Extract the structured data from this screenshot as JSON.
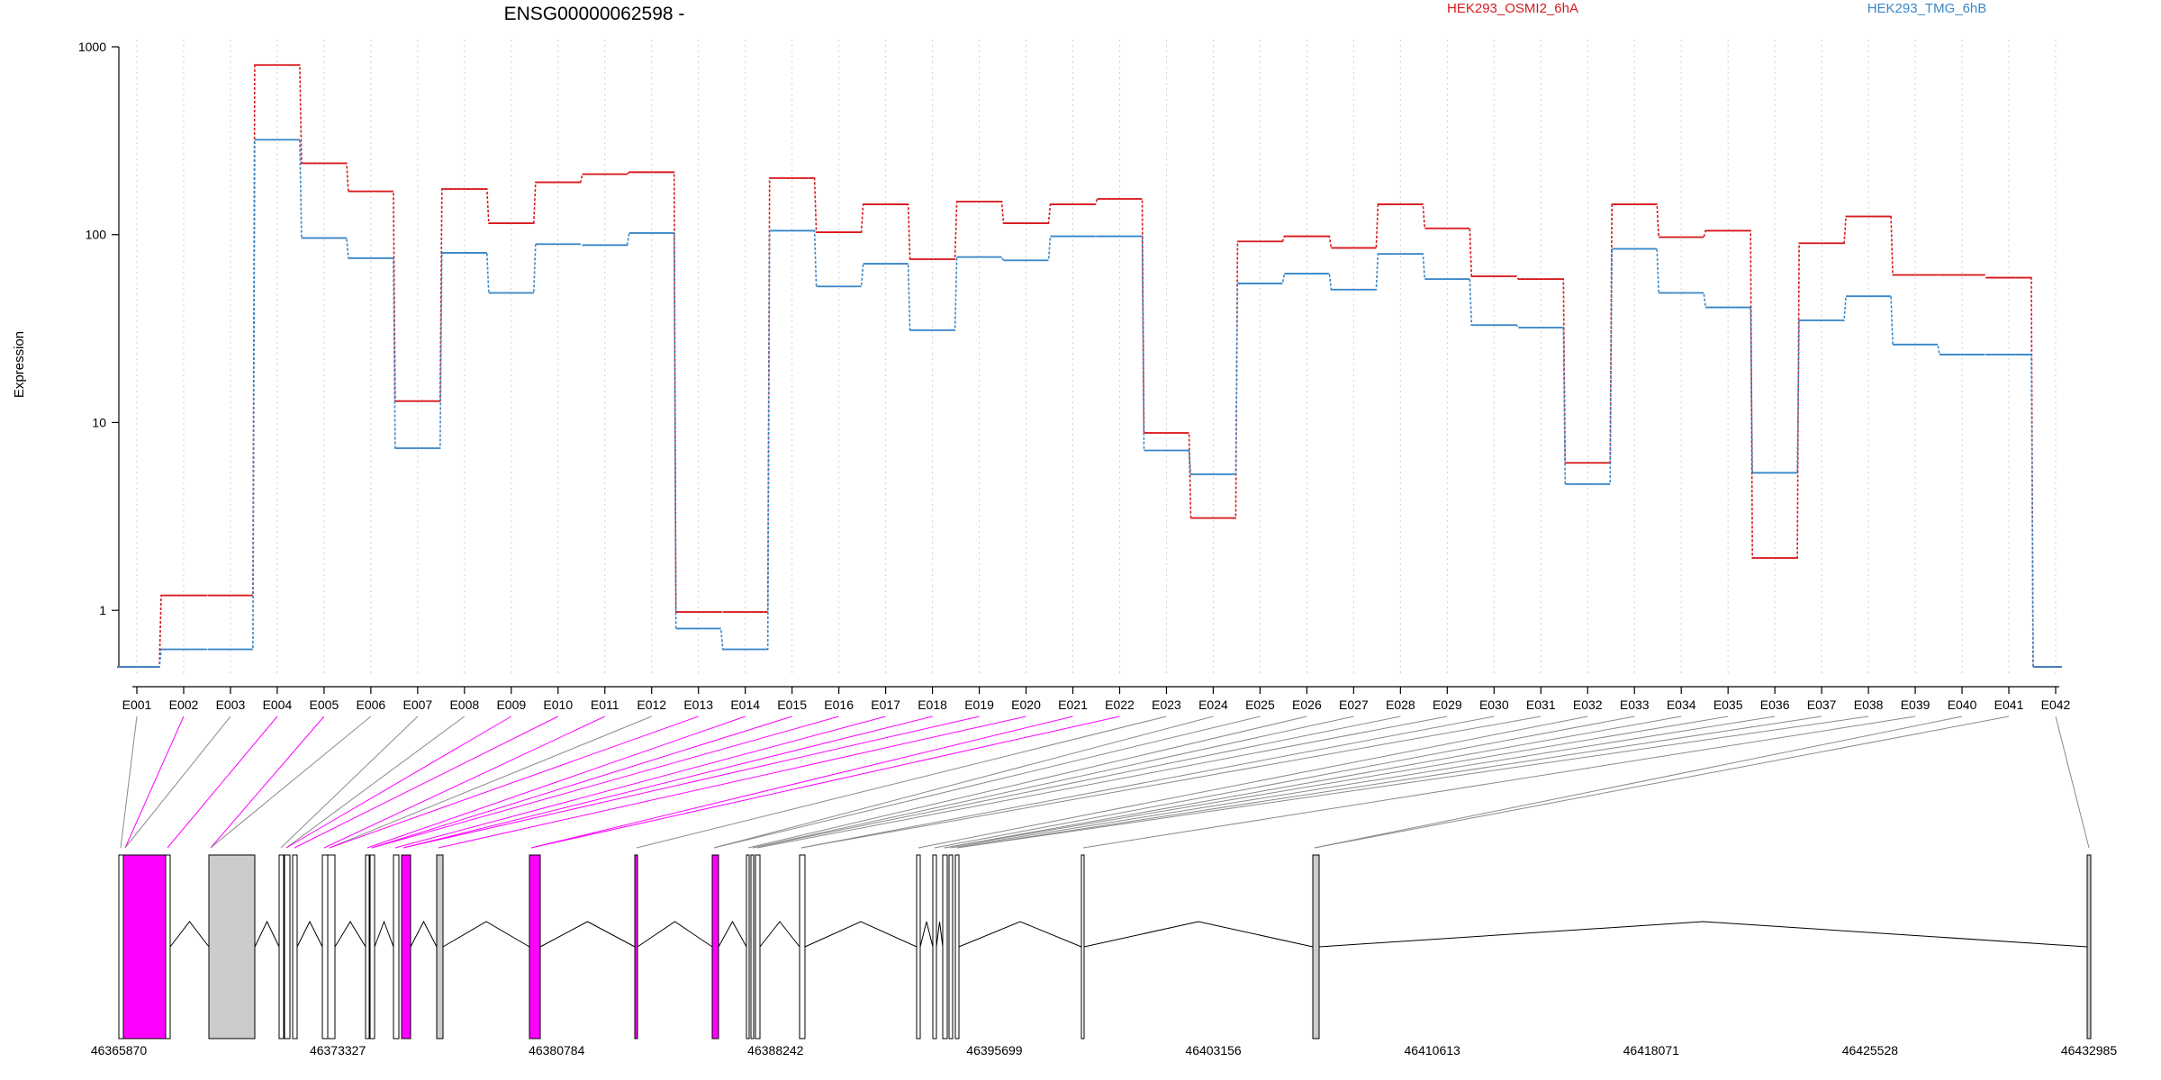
{
  "chart_data": {
    "type": "line",
    "title": "ENSG00000062598 -",
    "ylabel": "Expression",
    "xlabel": "",
    "y_scale": "log",
    "ylim": [
      0.5,
      1000
    ],
    "y_ticks": [
      {
        "value": 1,
        "label": "1"
      },
      {
        "value": 10,
        "label": "10"
      },
      {
        "value": 100,
        "label": "100"
      },
      {
        "value": 1000,
        "label": "1000"
      }
    ],
    "grid": "vertical dotted lines at each exon",
    "legend_placement": "top, above plot",
    "categories": [
      "E001",
      "E002",
      "E003",
      "E004",
      "E005",
      "E006",
      "E007",
      "E008",
      "E009",
      "E010",
      "E011",
      "E012",
      "E013",
      "E014",
      "E015",
      "E016",
      "E017",
      "E018",
      "E019",
      "E020",
      "E021",
      "E022",
      "E023",
      "E024",
      "E025",
      "E026",
      "E027",
      "E028",
      "E029",
      "E030",
      "E031",
      "E032",
      "E033",
      "E034",
      "E035",
      "E036",
      "E037",
      "E038",
      "E039",
      "E040",
      "E041",
      "E042"
    ],
    "series": [
      {
        "name": "HEK293_OSMI2_6hA",
        "color": "#d7191c",
        "values": [
          0.5,
          1.2,
          1.2,
          800,
          240,
          170,
          13,
          175,
          115,
          190,
          210,
          215,
          0.98,
          0.98,
          200,
          103,
          145,
          74,
          150,
          115,
          145,
          155,
          8.8,
          3.1,
          92,
          98,
          85,
          145,
          108,
          60,
          58,
          6.1,
          145,
          97,
          105,
          1.9,
          90,
          125,
          61,
          61,
          59,
          0.5
        ]
      },
      {
        "name": "HEK293_TMG_6hB",
        "color": "#3a87c8",
        "values": [
          0.5,
          0.62,
          0.62,
          320,
          96,
          75,
          7.3,
          80,
          49,
          89,
          88,
          102,
          0.8,
          0.62,
          105,
          53,
          70,
          31,
          76,
          73,
          98,
          98,
          7.1,
          5.3,
          55,
          62,
          51,
          79,
          58,
          33,
          32,
          4.7,
          84,
          49,
          41,
          5.4,
          35,
          47,
          26,
          23,
          23,
          0.5
        ]
      }
    ]
  },
  "gene_model": {
    "type": "exon-structure",
    "coordinate_ticks": [
      "46365870",
      "46373327",
      "46380784",
      "46388242",
      "46395699",
      "46403156",
      "46410613",
      "46418071",
      "46425528",
      "46432985"
    ],
    "highlight_color": "#ff00ff",
    "highlighted_exons": [
      "E002",
      "E004",
      "E005",
      "E009",
      "E010",
      "E011",
      "E013",
      "E014",
      "E015",
      "E016",
      "E017",
      "E018",
      "E019",
      "E020",
      "E021",
      "E022"
    ]
  }
}
